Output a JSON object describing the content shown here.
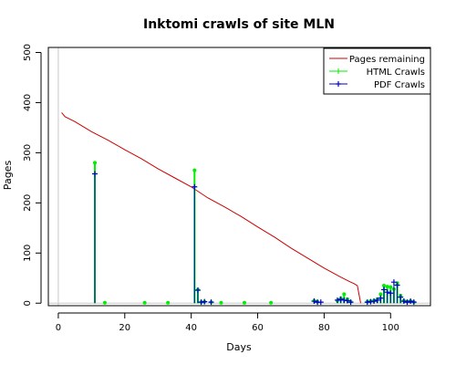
{
  "chart_data": {
    "type": "line",
    "title": "Inktomi crawls of site MLN",
    "xlabel": "Days",
    "ylabel": "Pages",
    "xlim": [
      -3,
      112
    ],
    "ylim": [
      -5,
      510
    ],
    "x_ticks": [
      0,
      20,
      40,
      60,
      80,
      100
    ],
    "y_ticks": [
      0,
      100,
      200,
      300,
      400,
      500
    ],
    "grid": false,
    "reference_lines": {
      "horizontal_y": 0,
      "vertical_x": 0
    },
    "legend": {
      "position": "top-right",
      "entries": [
        "Pages remaining",
        "HTML Crawls",
        "PDF Crawls"
      ]
    },
    "series": [
      {
        "name": "Pages remaining",
        "style": "line",
        "color": "#cc0000",
        "x": [
          1,
          2,
          5,
          10,
          15,
          20,
          25,
          30,
          35,
          40,
          45,
          50,
          55,
          60,
          65,
          70,
          75,
          80,
          85,
          88,
          89,
          90,
          91
        ],
        "y": [
          380,
          372,
          362,
          342,
          325,
          306,
          288,
          268,
          250,
          232,
          210,
          192,
          173,
          152,
          132,
          110,
          90,
          70,
          52,
          42,
          39,
          35,
          0
        ]
      },
      {
        "name": "HTML Crawls",
        "style": "spikes",
        "color": "#00ee00",
        "x": [
          11,
          14,
          26,
          33,
          41,
          42,
          43,
          44,
          46,
          49,
          56,
          64,
          77,
          78,
          84,
          85,
          86,
          87,
          88,
          93,
          94,
          95,
          96,
          97,
          98,
          99,
          100,
          101,
          102,
          103,
          104,
          105,
          106,
          107
        ],
        "y": [
          280,
          1,
          1,
          1,
          265,
          27,
          2,
          3,
          2,
          1,
          1,
          1,
          5,
          3,
          5,
          10,
          18,
          8,
          3,
          3,
          4,
          5,
          8,
          18,
          35,
          33,
          32,
          28,
          40,
          15,
          5,
          3,
          4,
          2
        ]
      },
      {
        "name": "PDF Crawls",
        "style": "spikes",
        "color": "#0000cc",
        "x": [
          11,
          41,
          42,
          43,
          44,
          46,
          77,
          78,
          79,
          84,
          85,
          86,
          87,
          88,
          93,
          94,
          95,
          96,
          97,
          98,
          99,
          100,
          101,
          102,
          103,
          104,
          105,
          106,
          107
        ],
        "y": [
          258,
          232,
          26,
          2,
          3,
          2,
          4,
          2,
          2,
          6,
          8,
          6,
          5,
          2,
          2,
          3,
          4,
          6,
          10,
          27,
          22,
          20,
          42,
          36,
          12,
          4,
          2,
          4,
          2
        ]
      }
    ]
  }
}
